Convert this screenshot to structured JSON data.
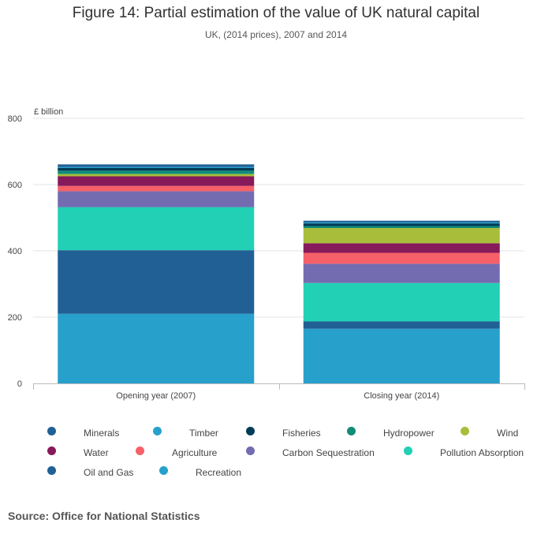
{
  "chart_data": {
    "type": "bar",
    "stacked": true,
    "title": "Figure 14: Partial estimation of the value of UK natural capital",
    "subtitle": "UK, (2014 prices), 2007 and 2014",
    "ylabel": "£ billion",
    "xlabel": "",
    "ylim": [
      0,
      800
    ],
    "yticks": [
      0,
      200,
      400,
      600,
      800
    ],
    "grid": true,
    "legend_position": "bottom",
    "categories": [
      "Opening year (2007)",
      "Closing year (2014)"
    ],
    "series": [
      {
        "name": "Recreation",
        "color": "#27a0cc",
        "values": [
          210,
          165
        ]
      },
      {
        "name": "Oil and Gas",
        "color": "#206095",
        "values": [
          192,
          22
        ]
      },
      {
        "name": "Pollution Absorption",
        "color": "#22d0b6",
        "values": [
          130,
          116
        ]
      },
      {
        "name": "Carbon Sequestration",
        "color": "#746cb1",
        "values": [
          48,
          58
        ]
      },
      {
        "name": "Agriculture",
        "color": "#f66068",
        "values": [
          16,
          33
        ]
      },
      {
        "name": "Water",
        "color": "#871a5b",
        "values": [
          29,
          29
        ]
      },
      {
        "name": "Wind",
        "color": "#a8bd3a",
        "values": [
          7,
          46
        ]
      },
      {
        "name": "Hydropower",
        "color": "#118c7b",
        "values": [
          10,
          6
        ]
      },
      {
        "name": "Fisheries",
        "color": "#003c57",
        "values": [
          8,
          8
        ]
      },
      {
        "name": "Timber",
        "color": "#27a0cc",
        "values": [
          3,
          3
        ]
      },
      {
        "name": "Minerals",
        "color": "#206095",
        "values": [
          8,
          5
        ]
      }
    ]
  },
  "legend": [
    {
      "name": "Minerals",
      "color": "#206095"
    },
    {
      "name": "Timber",
      "color": "#27a0cc"
    },
    {
      "name": "Fisheries",
      "color": "#003c57"
    },
    {
      "name": "Hydropower",
      "color": "#118c7b"
    },
    {
      "name": "Wind",
      "color": "#a8bd3a"
    },
    {
      "name": "Water",
      "color": "#871a5b"
    },
    {
      "name": "Agriculture",
      "color": "#f66068"
    },
    {
      "name": "Carbon Sequestration",
      "color": "#746cb1"
    },
    {
      "name": "Pollution Absorption",
      "color": "#22d0b6"
    },
    {
      "name": "Oil and Gas",
      "color": "#206095"
    },
    {
      "name": "Recreation",
      "color": "#27a0cc"
    }
  ],
  "source": "Source: Office for National Statistics"
}
